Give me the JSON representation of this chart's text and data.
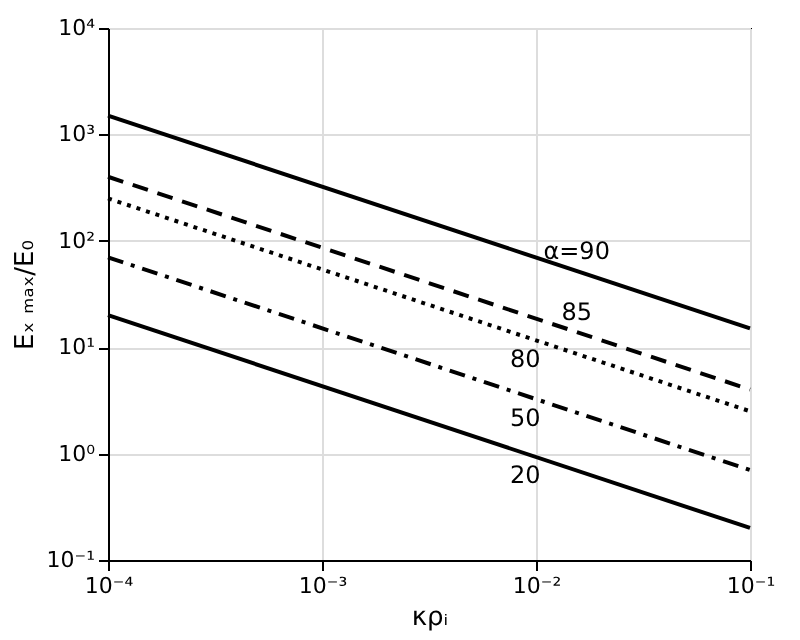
{
  "chart_data": {
    "type": "line",
    "xlabel": "κρᵢ",
    "ylabel": "Eₓ ₘₐₓ/E₀",
    "log": "xy",
    "grid": true,
    "marker": "none",
    "xlim": [
      0.0001,
      0.1
    ],
    "ylim": [
      0.1,
      10000
    ],
    "xticks": [
      {
        "value": 0.0001,
        "label": "10⁻⁴"
      },
      {
        "value": 0.001,
        "label": "10⁻³"
      },
      {
        "value": 0.01,
        "label": "10⁻²"
      },
      {
        "value": 0.1,
        "label": "10⁻¹"
      }
    ],
    "yticks": [
      {
        "value": 0.1,
        "label": "10⁻¹"
      },
      {
        "value": 1,
        "label": "10⁰"
      },
      {
        "value": 10,
        "label": "10¹"
      },
      {
        "value": 100,
        "label": "10²"
      },
      {
        "value": 1000,
        "label": "10³"
      },
      {
        "value": 10000,
        "label": "10⁴"
      }
    ],
    "x": [
      0.0001,
      0.1
    ],
    "series": [
      {
        "name": "α=90",
        "color": "#000000",
        "line_style": "solid",
        "values": [
          1500,
          15
        ]
      },
      {
        "name": "85",
        "color": "#000000",
        "line_style": "dashed",
        "values": [
          400,
          4
        ]
      },
      {
        "name": "80",
        "color": "#000000",
        "line_style": "dotted",
        "values": [
          250,
          2.5
        ]
      },
      {
        "name": "50",
        "color": "#000000",
        "line_style": "dashdot",
        "values": [
          70,
          0.7
        ]
      },
      {
        "name": "20",
        "color": "#000000",
        "line_style": "solid",
        "values": [
          20,
          0.2
        ]
      }
    ]
  }
}
